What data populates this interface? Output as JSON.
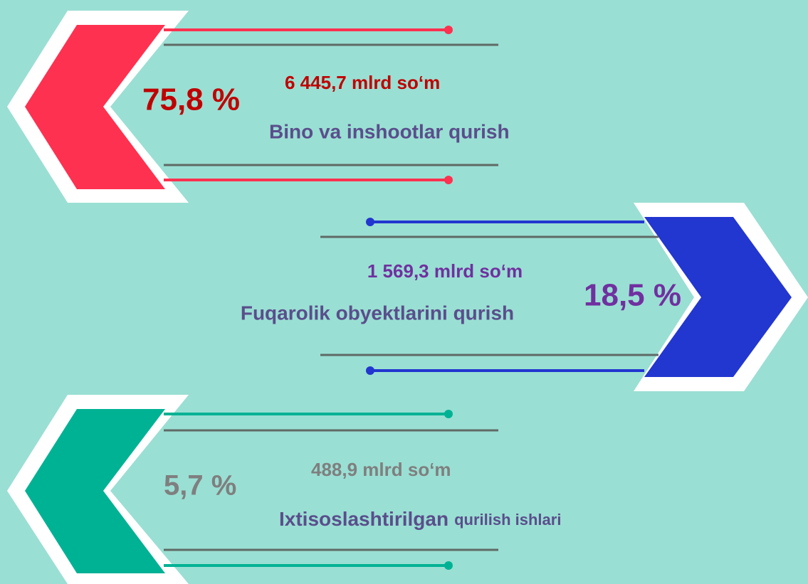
{
  "items": [
    {
      "percent": "75,8 %",
      "amount": "6 445,7 mlrd so‘m",
      "label": "Bino va inshootlar qurish"
    },
    {
      "percent": "18,5 %",
      "amount": "1 569,3 mlrd so‘m",
      "label": "Fuqarolik obyektlarini qurish"
    },
    {
      "percent": "5,7 %",
      "amount": "488,9 mlrd so‘m",
      "label": "Ixtisoslashtirilgan",
      "label_small": "qurilish ishlari"
    }
  ]
}
